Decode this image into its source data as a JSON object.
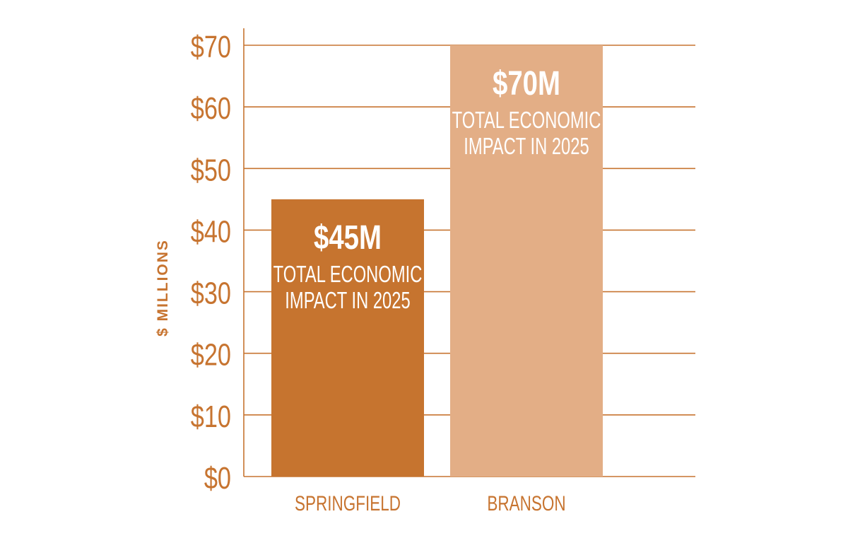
{
  "chart_data": {
    "type": "bar",
    "categories": [
      "SPRINGFIELD",
      "BRANSON"
    ],
    "values": [
      45,
      70
    ],
    "bar_value_labels": [
      "$45M",
      "$70M"
    ],
    "bar_caption_lines": [
      [
        "TOTAL ECONOMIC",
        "IMPACT IN 2025"
      ],
      [
        "TOTAL ECONOMIC",
        "IMPACT IN 2025"
      ]
    ],
    "ylabel": "$ MILLIONS",
    "ylim": [
      0,
      70
    ],
    "yticks": [
      0,
      10,
      20,
      30,
      40,
      50,
      60,
      70
    ],
    "ytick_labels": [
      "$0",
      "$10",
      "$20",
      "$30",
      "$40",
      "$50",
      "$60",
      "$70"
    ],
    "grid": true,
    "colors": {
      "axis": "#C77430",
      "text": "#C77430",
      "bar_springfield": "#C6742F",
      "bar_branson": "#E3AE86",
      "bar_text": "#FFFFFF"
    }
  }
}
